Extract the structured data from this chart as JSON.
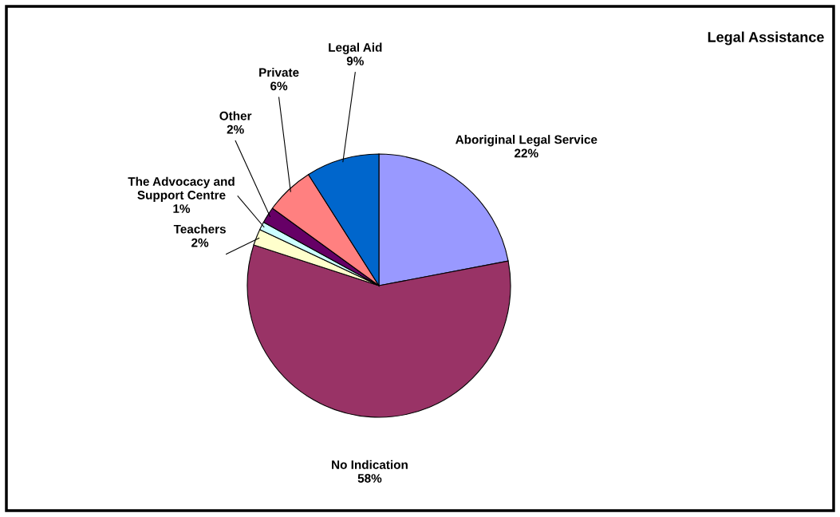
{
  "chart_data": {
    "type": "pie",
    "title": "Legal Assistance",
    "categories": [
      "Aboriginal Legal Service",
      "No Indication",
      "Teachers",
      "The Advocacy and Support Centre",
      "Other",
      "Private",
      "Legal Aid"
    ],
    "values": [
      22,
      58,
      2,
      1,
      2,
      6,
      9
    ],
    "colors": [
      "#9999ff",
      "#993366",
      "#ffffcc",
      "#ccffff",
      "#660066",
      "#ff8080",
      "#0066cc"
    ],
    "value_labels": [
      "22%",
      "58%",
      "2%",
      "1%",
      "2%",
      "6%",
      "9%"
    ],
    "legend": false
  }
}
